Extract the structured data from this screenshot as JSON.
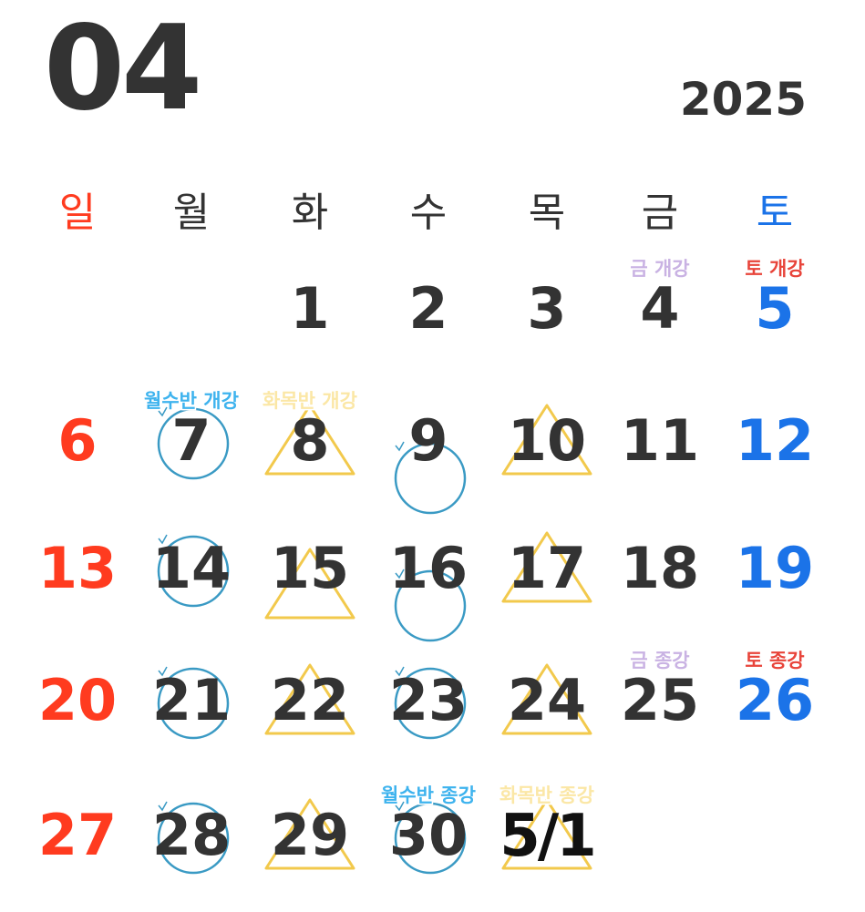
{
  "calendar": {
    "month": "04",
    "year": "2025",
    "weekdays": [
      "일",
      "월",
      "화",
      "수",
      "목",
      "금",
      "토"
    ],
    "colors": {
      "sunday": "#ff3b1f",
      "saturday": "#1b73e8",
      "weekday": "#333333",
      "circle": "#3a9ac4",
      "triangle": "#f2c94c",
      "tag_blue": "#3eb3ee",
      "tag_cream": "#fbe7a6",
      "tag_lilac": "#c9b2e3",
      "tag_red": "#e8443a"
    },
    "days": [
      {
        "t": "1",
        "c": 2,
        "r": 0
      },
      {
        "t": "2",
        "c": 3,
        "r": 0
      },
      {
        "t": "3",
        "c": 4,
        "r": 0
      },
      {
        "t": "4",
        "c": 5,
        "r": 0
      },
      {
        "t": "5",
        "c": 6,
        "r": 0
      },
      {
        "t": "6",
        "c": 0,
        "r": 1
      },
      {
        "t": "7",
        "c": 1,
        "r": 1,
        "m": "circle"
      },
      {
        "t": "8",
        "c": 2,
        "r": 1,
        "m": "triangle"
      },
      {
        "t": "9",
        "c": 3,
        "r": 1,
        "m": "circle-low"
      },
      {
        "t": "10",
        "c": 4,
        "r": 1,
        "m": "triangle"
      },
      {
        "t": "11",
        "c": 5,
        "r": 1
      },
      {
        "t": "12",
        "c": 6,
        "r": 1
      },
      {
        "t": "13",
        "c": 0,
        "r": 2
      },
      {
        "t": "14",
        "c": 1,
        "r": 2,
        "m": "circle"
      },
      {
        "t": "15",
        "c": 2,
        "r": 2,
        "m": "triangle-low"
      },
      {
        "t": "16",
        "c": 3,
        "r": 2,
        "m": "circle-low"
      },
      {
        "t": "17",
        "c": 4,
        "r": 2,
        "m": "triangle"
      },
      {
        "t": "18",
        "c": 5,
        "r": 2
      },
      {
        "t": "19",
        "c": 6,
        "r": 2
      },
      {
        "t": "20",
        "c": 0,
        "r": 3
      },
      {
        "t": "21",
        "c": 1,
        "r": 3,
        "m": "circle"
      },
      {
        "t": "22",
        "c": 2,
        "r": 3,
        "m": "triangle"
      },
      {
        "t": "23",
        "c": 3,
        "r": 3,
        "m": "circle"
      },
      {
        "t": "24",
        "c": 4,
        "r": 3,
        "m": "triangle"
      },
      {
        "t": "25",
        "c": 5,
        "r": 3
      },
      {
        "t": "26",
        "c": 6,
        "r": 3
      },
      {
        "t": "27",
        "c": 0,
        "r": 4
      },
      {
        "t": "28",
        "c": 1,
        "r": 4,
        "m": "circle"
      },
      {
        "t": "29",
        "c": 2,
        "r": 4,
        "m": "triangle"
      },
      {
        "t": "30",
        "c": 3,
        "r": 4,
        "m": "circle"
      },
      {
        "t": "5/1",
        "c": 4,
        "r": 4,
        "m": "triangle",
        "bold": true
      }
    ],
    "tags": [
      {
        "t": "금 개강",
        "c": 5,
        "r": 0,
        "color": "lilac"
      },
      {
        "t": "토 개강",
        "c": 6,
        "r": 0,
        "color": "red"
      },
      {
        "t": "월수반 개강",
        "c": 1,
        "r": 1,
        "color": "blue"
      },
      {
        "t": "화목반 개강",
        "c": 2,
        "r": 1,
        "color": "cream"
      },
      {
        "t": "금 종강",
        "c": 5,
        "r": 3,
        "color": "lilac"
      },
      {
        "t": "토 종강",
        "c": 6,
        "r": 3,
        "color": "red"
      },
      {
        "t": "월수반 종강",
        "c": 3,
        "r": 4,
        "color": "blue"
      },
      {
        "t": "화목반 종강",
        "c": 4,
        "r": 4,
        "color": "cream"
      }
    ]
  }
}
